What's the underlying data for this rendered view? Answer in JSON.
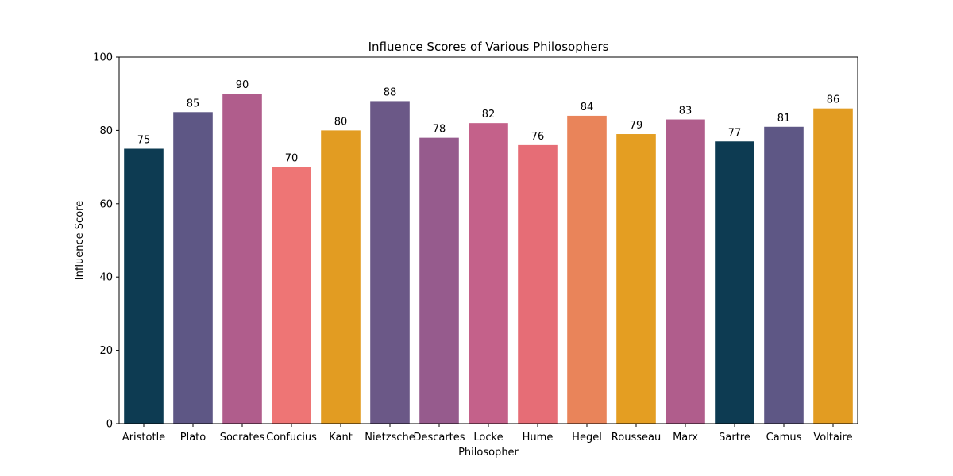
{
  "chart_data": {
    "type": "bar",
    "title": "Influence Scores of Various Philosophers",
    "xlabel": "Philosopher",
    "ylabel": "Influence Score",
    "ylim": [
      0,
      100
    ],
    "yticks": [
      "0",
      "20",
      "40",
      "60",
      "80",
      "100"
    ],
    "categories": [
      "Aristotle",
      "Plato",
      "Socrates",
      "Confucius",
      "Kant",
      "Nietzsche",
      "Descartes",
      "Locke",
      "Hume",
      "Hegel",
      "Rousseau",
      "Marx",
      "Sartre",
      "Camus",
      "Voltaire"
    ],
    "values": [
      75,
      85,
      90,
      70,
      80,
      88,
      78,
      82,
      76,
      84,
      79,
      83,
      77,
      81,
      86
    ],
    "colors": [
      "#0d3b52",
      "#5e5785",
      "#b05d8c",
      "#ee7575",
      "#e29c22",
      "#6b5887",
      "#965b8d",
      "#c4618a",
      "#e66d76",
      "#e9845a",
      "#e49e22",
      "#b05d8c",
      "#0d3b52",
      "#5e5785",
      "#e29c22"
    ],
    "grid": false,
    "legend": "none"
  }
}
